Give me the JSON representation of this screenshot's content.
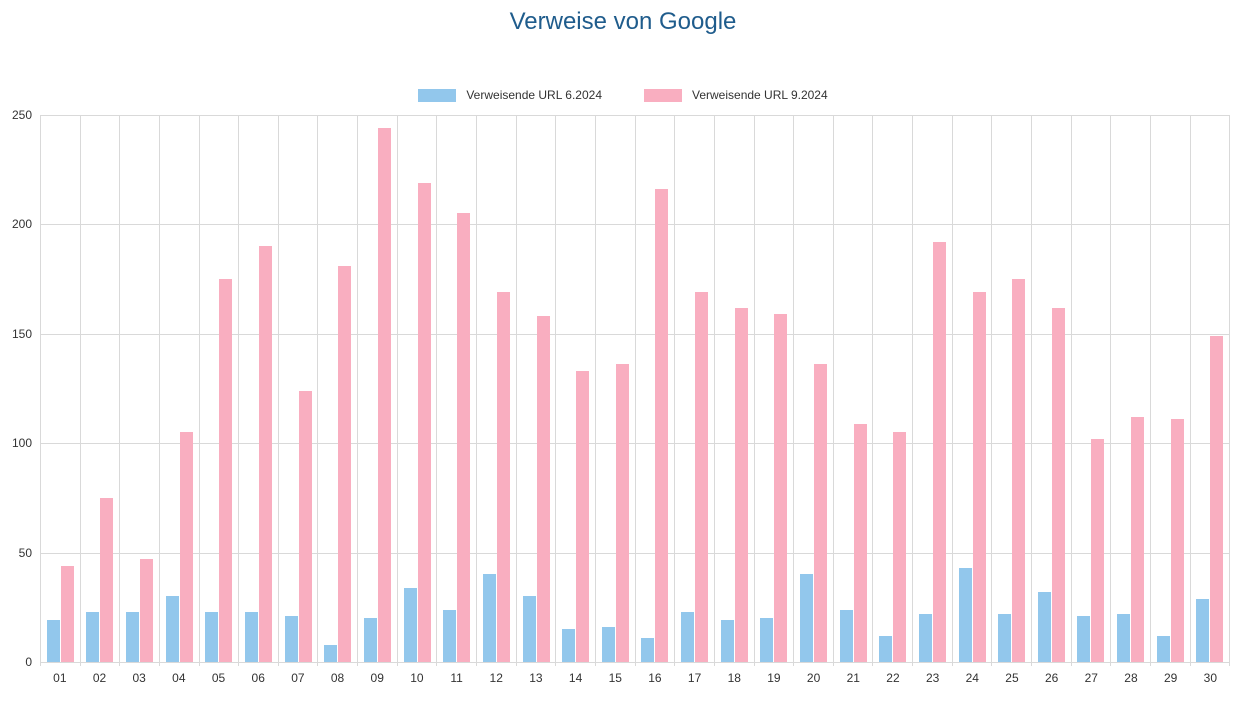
{
  "title": "Verweise von Google",
  "colors": {
    "title": "#1f5c8c",
    "series_1": "#92c7ec",
    "series_2": "#f9aec0",
    "gridline": "#d9d9d9",
    "axis_text": "#333333"
  },
  "legend": {
    "items": [
      {
        "label": "Verweisende URL 6.2024",
        "color": "#92c7ec"
      },
      {
        "label": "Verweisende URL 9.2024",
        "color": "#f9aec0"
      }
    ]
  },
  "chart_data": {
    "type": "bar",
    "title": "Verweise von Google",
    "categories": [
      "01",
      "02",
      "03",
      "04",
      "05",
      "06",
      "07",
      "08",
      "09",
      "10",
      "11",
      "12",
      "13",
      "14",
      "15",
      "16",
      "17",
      "18",
      "19",
      "20",
      "21",
      "22",
      "23",
      "24",
      "25",
      "26",
      "27",
      "28",
      "29",
      "30"
    ],
    "series": [
      {
        "name": "Verweisende URL 6.2024",
        "color": "#92c7ec",
        "values": [
          19,
          23,
          23,
          30,
          23,
          23,
          21,
          8,
          20,
          34,
          24,
          40,
          30,
          15,
          16,
          11,
          23,
          19,
          20,
          40,
          24,
          12,
          22,
          43,
          22,
          32,
          21,
          22,
          12,
          29
        ]
      },
      {
        "name": "Verweisende URL 9.2024",
        "color": "#f9aec0",
        "values": [
          44,
          75,
          47,
          105,
          175,
          190,
          124,
          181,
          244,
          219,
          205,
          169,
          158,
          133,
          136,
          216,
          169,
          162,
          159,
          136,
          109,
          105,
          192,
          169,
          175,
          162,
          102,
          112,
          111,
          149
        ]
      }
    ],
    "xlabel": "",
    "ylabel": "",
    "ylim": [
      0,
      250
    ],
    "yticks": [
      0,
      50,
      100,
      150,
      200,
      250
    ],
    "grid": true,
    "legend_position": "top"
  }
}
